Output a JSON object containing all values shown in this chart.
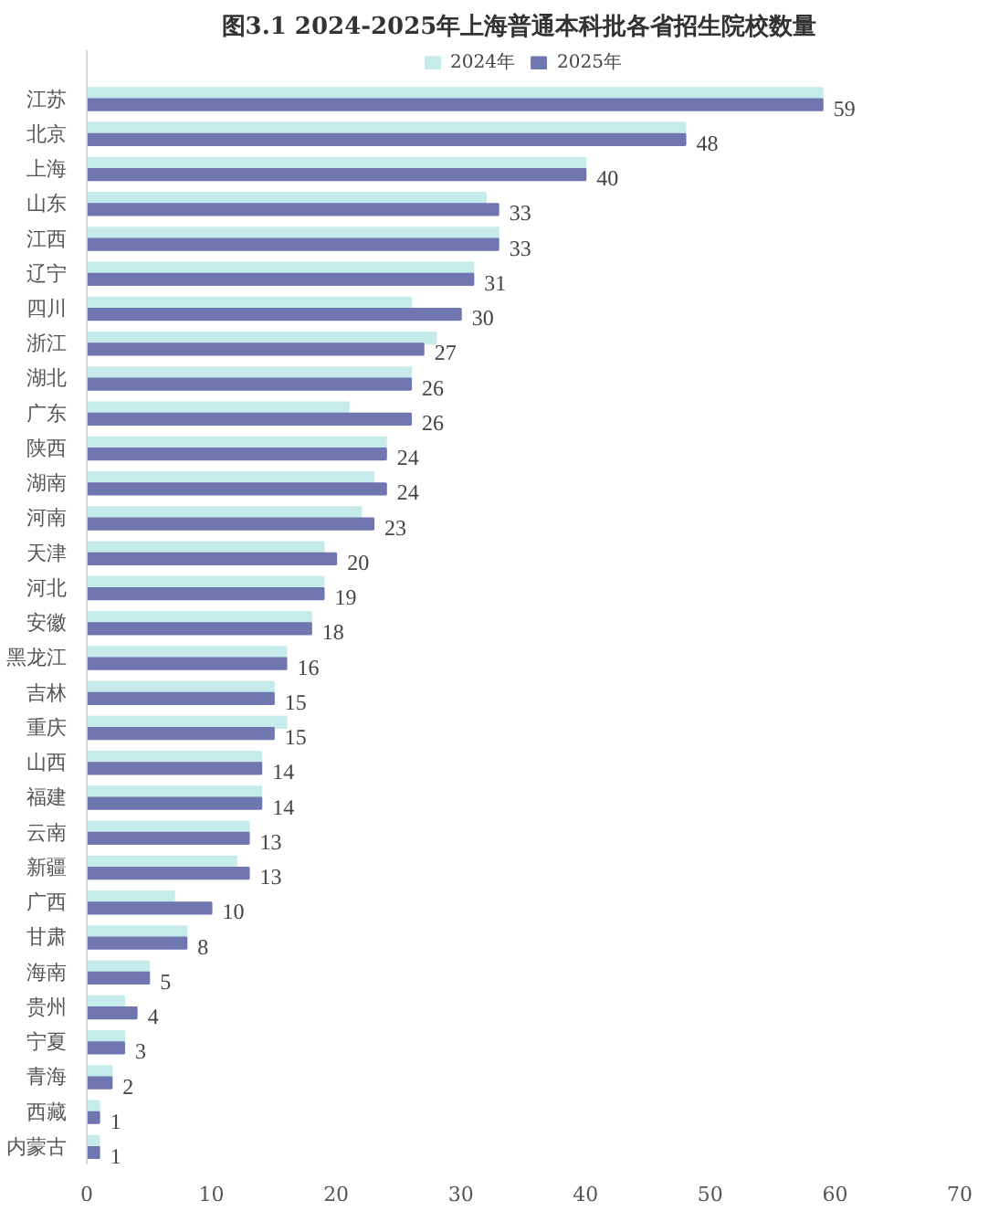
{
  "chart_data": {
    "type": "bar",
    "orientation": "horizontal",
    "title": "图3.1  2024-2025年上海普通本科批各省招生院校数量",
    "categories": [
      "江苏",
      "北京",
      "上海",
      "山东",
      "江西",
      "辽宁",
      "四川",
      "浙江",
      "湖北",
      "广东",
      "陕西",
      "湖南",
      "河南",
      "天津",
      "河北",
      "安徽",
      "黑龙江",
      "吉林",
      "重庆",
      "山西",
      "福建",
      "云南",
      "新疆",
      "广西",
      "甘肃",
      "海南",
      "贵州",
      "宁夏",
      "青海",
      "西藏",
      "内蒙古"
    ],
    "series": [
      {
        "name": "2024年",
        "color": "#c5ecea",
        "values": [
          59,
          48,
          40,
          32,
          33,
          31,
          26,
          28,
          26,
          21,
          24,
          23,
          22,
          19,
          19,
          18,
          16,
          15,
          16,
          14,
          14,
          13,
          12,
          7,
          8,
          5,
          3,
          3,
          2,
          1,
          1
        ]
      },
      {
        "name": "2025年",
        "color": "#6f76b0",
        "values": [
          59,
          48,
          40,
          33,
          33,
          31,
          30,
          27,
          26,
          26,
          24,
          24,
          23,
          20,
          19,
          18,
          16,
          15,
          15,
          14,
          14,
          13,
          13,
          10,
          8,
          5,
          4,
          3,
          2,
          1,
          1
        ],
        "value_labels": [
          "59",
          "48",
          "40",
          "33",
          "33",
          "31",
          "30",
          "27",
          "26",
          "26",
          "24",
          "24",
          "23",
          "20",
          "19",
          "18",
          "16",
          "15",
          "15",
          "14",
          "14",
          "13",
          "13",
          "10",
          "8",
          "5",
          "4",
          "3",
          "2",
          "1",
          "1"
        ]
      }
    ],
    "xlim": [
      0,
      70
    ],
    "xticks": [
      0,
      10,
      20,
      30,
      40,
      50,
      60,
      70
    ],
    "grid": false,
    "legend": "top"
  }
}
